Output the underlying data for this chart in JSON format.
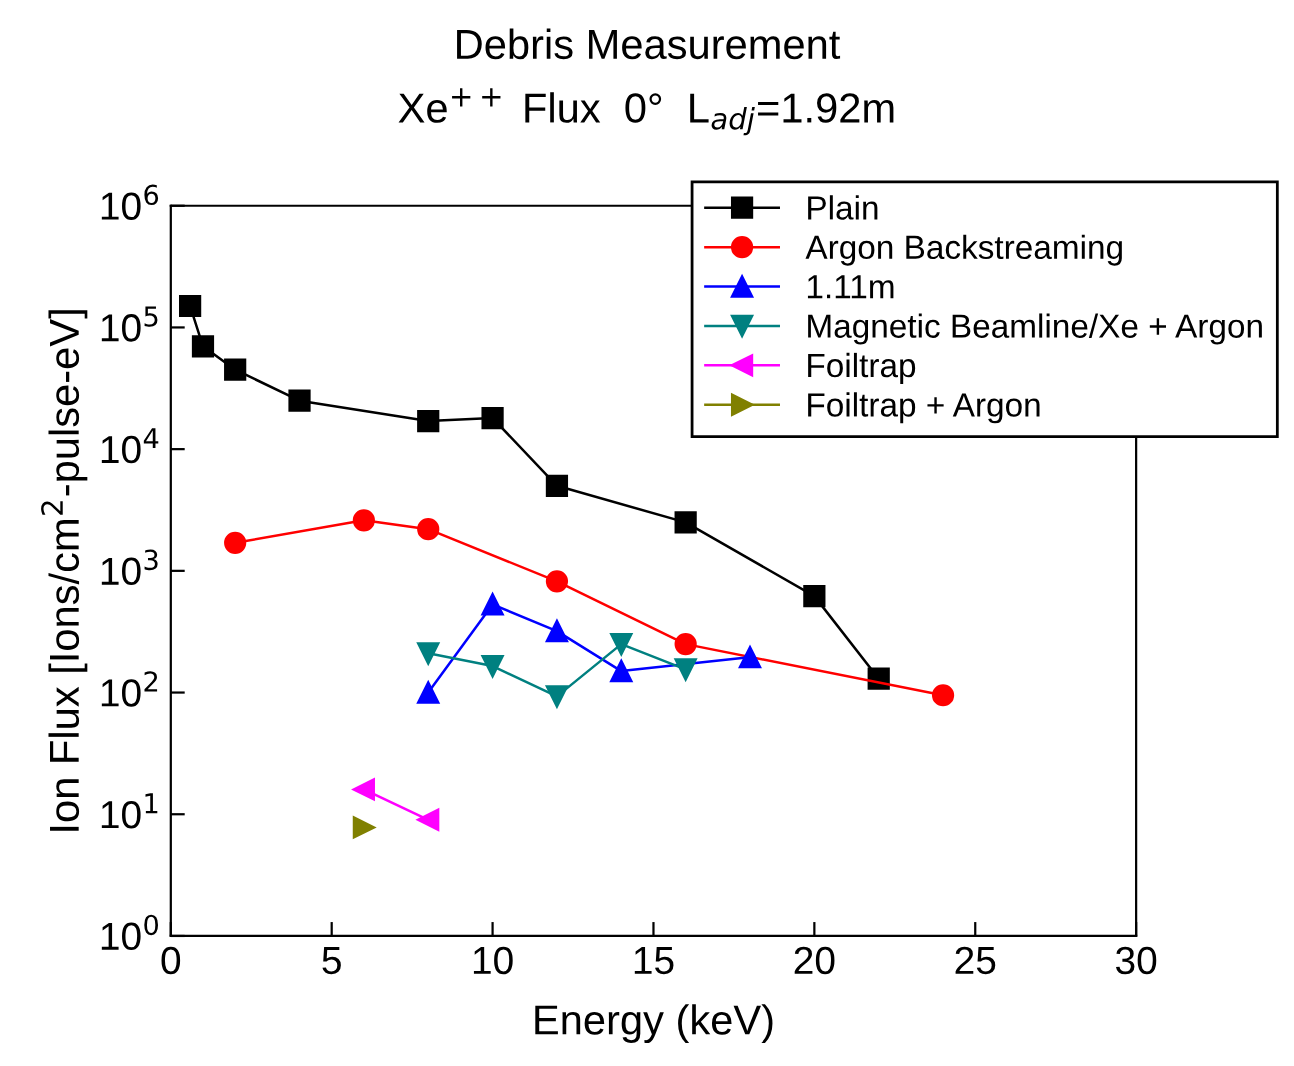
{
  "chart_data": {
    "type": "line",
    "title": "Debris Measurement",
    "subtitle": "Xe$^{++}$ Flux  0°  L$_{adj}$=1.92m",
    "xlabel": "Energy (keV)",
    "ylabel": "Ion Flux [Ions/cm$^{2}$-pulse-eV]",
    "log": "y",
    "xlim": [
      0,
      30
    ],
    "xticks": [
      0,
      5,
      10,
      15,
      20,
      25,
      30
    ],
    "ylim": [
      1,
      1000000
    ],
    "yticks": [
      {
        "value": 1,
        "label": "10$^{0}$"
      },
      {
        "value": 10,
        "label": "10$^{1}$"
      },
      {
        "value": 100,
        "label": "10$^{2}$"
      },
      {
        "value": 1000,
        "label": "10$^{3}$"
      },
      {
        "value": 10000,
        "label": "10$^{4}$"
      },
      {
        "value": 100000,
        "label": "10$^{5}$"
      },
      {
        "value": 1000000,
        "label": "10$^{6}$"
      }
    ],
    "grid": false,
    "legend": "top right",
    "line_style": "solid",
    "series": [
      {
        "name": "Plain",
        "color": "#000000",
        "marker": "square",
        "x": [
          0.6,
          1,
          2,
          4,
          8,
          10,
          12,
          16,
          20,
          22
        ],
        "values": [
          150000,
          70000,
          45000,
          25000,
          17000,
          18000,
          5000,
          2500,
          620,
          130
        ]
      },
      {
        "name": "Argon Backstreaming",
        "color": "#ff0000",
        "marker": "circle",
        "x": [
          2,
          6,
          8,
          12,
          16,
          24
        ],
        "values": [
          1700,
          2600,
          2200,
          820,
          250,
          95
        ]
      },
      {
        "name": "1.11m",
        "color": "#0000ff",
        "marker": "triangle",
        "x": [
          8,
          10,
          12,
          14,
          18
        ],
        "values": [
          100,
          530,
          320,
          150,
          195
        ]
      },
      {
        "name": "Magnetic Beamline/Xe + Argon",
        "color": "#008080",
        "marker": "triangle_down",
        "x": [
          8,
          10,
          12,
          14,
          16
        ],
        "values": [
          210,
          165,
          93,
          250,
          155
        ]
      },
      {
        "name": "Foiltrap",
        "color": "#ff00ff",
        "marker": "triangle_left",
        "x": [
          6,
          8
        ],
        "values": [
          16,
          9
        ]
      },
      {
        "name": "Foiltrap + Argon",
        "color": "#808000",
        "marker": "triangle_right",
        "x": [
          6
        ],
        "values": [
          7.8
        ]
      }
    ]
  }
}
